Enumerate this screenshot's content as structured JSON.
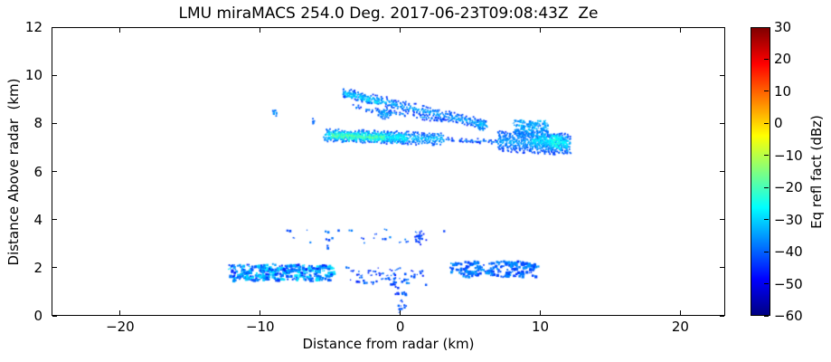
{
  "chart_data": {
    "type": "heatmap",
    "subtype": "radar-rhi-reflectivity-cross-section",
    "title": "LMU miraMACS 254.0 Deg. 2017-06-23T09:08:43Z  Ze",
    "xlabel": "Distance from radar (km)",
    "ylabel": "Distance Above radar  (km)",
    "xlim": [
      -24.9,
      23.2
    ],
    "ylim": [
      0,
      12
    ],
    "grid": false,
    "xticks": {
      "values": [
        -20,
        -10,
        0,
        10,
        20
      ],
      "labels": [
        "−20",
        "−10",
        "0",
        "10",
        "20"
      ]
    },
    "yticks": {
      "values": [
        0,
        2,
        4,
        6,
        8,
        10,
        12
      ],
      "labels": [
        "0",
        "2",
        "4",
        "6",
        "8",
        "10",
        "12"
      ]
    },
    "colorbar": {
      "label": "Eq refl fact (dBz)",
      "min": -60,
      "max": 30,
      "colormap": "jet",
      "ticks": [
        30,
        20,
        10,
        0,
        -10,
        -20,
        -30,
        -40,
        -50,
        -60
      ],
      "tick_labels": [
        "30",
        "20",
        "10",
        "0",
        "−10",
        "−20",
        "−30",
        "−40",
        "−50",
        "−60"
      ]
    },
    "echoes": {
      "bands": [
        {
          "name": "upper-fall-streak",
          "x0": -4.2,
          "z0": 9.35,
          "x1": 6.05,
          "z1": 8.0,
          "w": 0.17,
          "core": -33,
          "edge": -43,
          "density": 0.7
        },
        {
          "name": "upper-streak-bright-tip",
          "x0": -4.0,
          "z0": 9.28,
          "x1": -1.6,
          "z1": 8.95,
          "w": 0.11,
          "core": -28,
          "edge": -35,
          "density": 0.8
        },
        {
          "name": "streak-branch",
          "x0": -3.4,
          "z0": 8.75,
          "x1": 3.3,
          "z1": 8.15,
          "w": 0.09,
          "core": -37,
          "edge": -44,
          "density": 0.55
        },
        {
          "name": "main-band-base",
          "x0": -5.5,
          "z0": 7.57,
          "x1": 2.9,
          "z1": 7.42,
          "w": 0.27,
          "core": -31,
          "edge": -42,
          "density": 0.9
        },
        {
          "name": "main-band-cyan",
          "x0": -5.3,
          "z0": 7.56,
          "x1": 0.3,
          "z1": 7.46,
          "w": 0.19,
          "core": -26,
          "edge": -32,
          "density": 0.9
        },
        {
          "name": "main-band-green-core",
          "x0": -5.0,
          "z0": 7.55,
          "x1": -1.3,
          "z1": 7.49,
          "w": 0.12,
          "core": -17,
          "edge": -24,
          "density": 0.95
        },
        {
          "name": "small-dash",
          "x0": 3.2,
          "z0": 7.4,
          "x1": 3.75,
          "z1": 7.38,
          "w": 0.07,
          "core": -40,
          "edge": -45,
          "density": 0.7
        },
        {
          "name": "speckle-line",
          "x0": 4.1,
          "z0": 7.37,
          "x1": 6.9,
          "z1": 7.31,
          "w": 0.09,
          "core": -37,
          "edge": -44,
          "density": 0.6
        },
        {
          "name": "right-cloud-base",
          "x0": 6.9,
          "z0": 7.34,
          "x1": 12.0,
          "z1": 7.2,
          "w": 0.42,
          "core": -34,
          "edge": -43,
          "density": 0.85
        },
        {
          "name": "right-cloud-bright",
          "x0": 9.3,
          "z0": 7.38,
          "x1": 11.8,
          "z1": 7.25,
          "w": 0.3,
          "core": -27,
          "edge": -34,
          "density": 0.8
        }
      ],
      "blobs": [
        {
          "name": "isolated-speck-west",
          "x": -9.1,
          "z": 8.5,
          "rx": 0.22,
          "rz": 0.15,
          "core": -33,
          "edge": -41,
          "density": 0.8
        },
        {
          "name": "isolated-speck-west-2",
          "x": -6.3,
          "z": 8.2,
          "rx": 0.18,
          "rz": 0.17,
          "core": -36,
          "edge": -43,
          "density": 0.75
        },
        {
          "name": "blob-under-streak",
          "x": -1.2,
          "z": 8.48,
          "rx": 0.55,
          "rz": 0.23,
          "core": -31,
          "edge": -40,
          "density": 0.8
        },
        {
          "name": "streak-end-knot",
          "x": 5.65,
          "z": 8.0,
          "rx": 0.45,
          "rz": 0.24,
          "core": -29,
          "edge": -38,
          "density": 0.85
        },
        {
          "name": "right-cloud-green-patch",
          "x": 11.0,
          "z": 7.3,
          "rx": 0.55,
          "rz": 0.33,
          "core": -21,
          "edge": -28,
          "density": 0.75
        },
        {
          "name": "midlevel-blob",
          "x": 1.3,
          "z": 3.3,
          "rx": 0.45,
          "rz": 0.26,
          "core": -40,
          "edge": -46,
          "density": 0.7
        }
      ],
      "speckles": [
        {
          "name": "low-left-cluster",
          "x0": -12.3,
          "x1": -5.0,
          "z0": 1.55,
          "z1": 2.2,
          "n": 280,
          "v": [
            -46,
            -28
          ],
          "size": 2.5
        },
        {
          "name": "low-mid-sparse",
          "x0": -4.1,
          "x1": 1.7,
          "z0": 1.35,
          "z1": 2.1,
          "n": 55,
          "v": [
            -47,
            -37
          ],
          "size": 2.0
        },
        {
          "name": "low-right-cluster",
          "x0": 3.5,
          "x1": 9.6,
          "z0": 1.7,
          "z1": 2.35,
          "n": 160,
          "v": [
            -45,
            -34
          ],
          "size": 2.5
        },
        {
          "name": "midlevel-dots",
          "x0": -8.4,
          "x1": 3.6,
          "z0": 2.85,
          "z1": 3.65,
          "n": 26,
          "v": [
            -44,
            -36
          ],
          "size": 2.0
        },
        {
          "name": "near-zero-fallstreak",
          "x0": -0.4,
          "x1": 0.3,
          "z0": 0.1,
          "z1": 1.25,
          "n": 16,
          "v": [
            -45,
            -38
          ],
          "size": 2.0
        },
        {
          "name": "right-cloud-top-tufts",
          "x0": 8.0,
          "x1": 10.4,
          "z0": 7.55,
          "z1": 8.2,
          "n": 110,
          "v": [
            -40,
            -31
          ],
          "size": 2.0
        }
      ]
    }
  }
}
